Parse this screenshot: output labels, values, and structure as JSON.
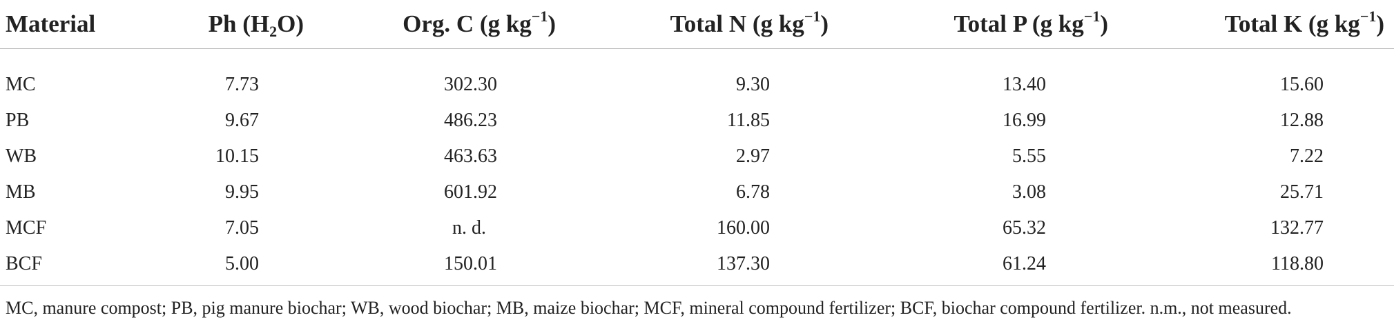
{
  "table": {
    "headers": {
      "material": "Material",
      "ph": "Ph (H",
      "ph_sub": "2",
      "ph_end": "O)",
      "orgc": "Org. C (g kg",
      "orgc_sup": "−1",
      "orgc_end": ")",
      "totaln": "Total N (g kg",
      "totaln_sup": "−1",
      "totaln_end": ")",
      "totalp": "Total P (g kg",
      "totalp_sup": "−1",
      "totalp_end": ")",
      "totalk": "Total K (g kg",
      "totalk_sup": "−1",
      "totalk_end": ")"
    },
    "rows": [
      {
        "material": "MC",
        "ph": "7.73",
        "orgc": "302.30",
        "n": "9.30",
        "p": "13.40",
        "k": "15.60"
      },
      {
        "material": "PB",
        "ph": "9.67",
        "orgc": "486.23",
        "n": "11.85",
        "p": "16.99",
        "k": "12.88"
      },
      {
        "material": "WB",
        "ph": "10.15",
        "orgc": "463.63",
        "n": "2.97",
        "p": "5.55",
        "k": "7.22"
      },
      {
        "material": "MB",
        "ph": "9.95",
        "orgc": "601.92",
        "n": "6.78",
        "p": "3.08",
        "k": "25.71"
      },
      {
        "material": "MCF",
        "ph": "7.05",
        "orgc": "n. d.",
        "n": "160.00",
        "p": "65.32",
        "k": "132.77"
      },
      {
        "material": "BCF",
        "ph": "5.00",
        "orgc": "150.01",
        "n": "137.30",
        "p": "61.24",
        "k": "118.80"
      }
    ]
  },
  "footnote": "MC, manure compost; PB, pig manure biochar; WB, wood biochar; MB, maize biochar; MCF, mineral compound fertilizer; BCF, biochar compound fertilizer. n.m., not measured."
}
